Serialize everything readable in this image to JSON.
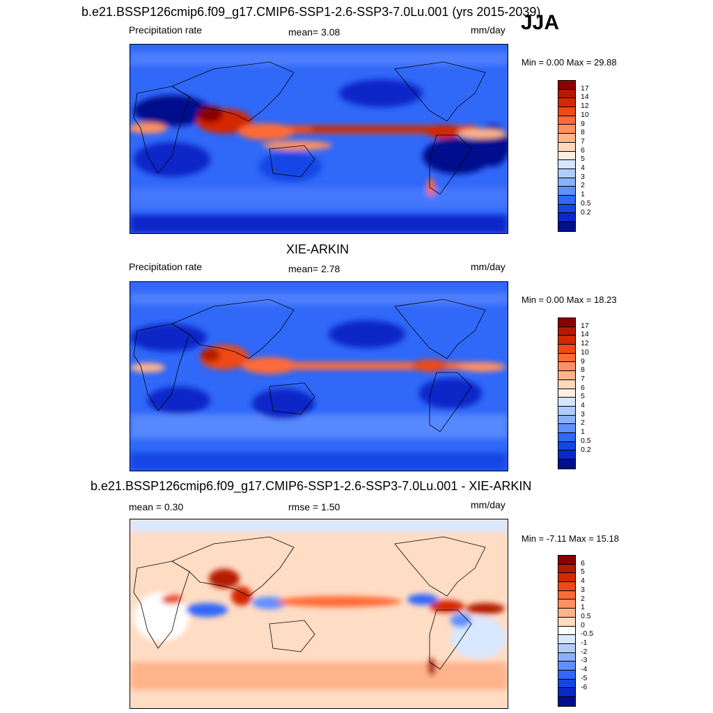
{
  "season": "JJA",
  "panels": [
    {
      "title": "b.e21.BSSP126cmip6.f09_g17.CMIP6-SSP1-2.6-SSP3-7.0Lu.001 (yrs 2015-2039)",
      "left_label": "Precipitation rate",
      "center_label": "mean=   3.08",
      "units": "mm/day",
      "minmax": "Min =   0.00 Max =  29.88",
      "colorbar_labels": [
        "17",
        "14",
        "12",
        "10",
        "9",
        "8",
        "7",
        "6",
        "5",
        "4",
        "3",
        "2",
        "1",
        "0.5",
        "0.2"
      ]
    },
    {
      "title": "XIE-ARKIN",
      "left_label": "Precipitation rate",
      "center_label": "mean=   2.78",
      "units": "mm/day",
      "minmax": "Min =   0.00 Max =  18.23",
      "colorbar_labels": [
        "17",
        "14",
        "12",
        "10",
        "9",
        "8",
        "7",
        "6",
        "5",
        "4",
        "3",
        "2",
        "1",
        "0.5",
        "0.2"
      ]
    },
    {
      "title": "b.e21.BSSP126cmip6.f09_g17.CMIP6-SSP1-2.6-SSP3-7.0Lu.001 - XIE-ARKIN",
      "left_label": "mean =   0.30",
      "center_label": "rmse =   1.50",
      "units": "mm/day",
      "minmax": "Min =  -7.11 Max =  15.18",
      "colorbar_labels": [
        "6",
        "5",
        "4",
        "3",
        "2",
        "1",
        "0.5",
        "0",
        "-0.5",
        "-1",
        "-2",
        "-3",
        "-4",
        "-5",
        "-6"
      ]
    }
  ],
  "colors": {
    "precip_scale": [
      "#8b0000",
      "#b51a00",
      "#d42800",
      "#ee4a18",
      "#ff6a38",
      "#ff9062",
      "#ffb48c",
      "#ffd8bc",
      "#fdf0e2",
      "#d4e6ff",
      "#b0ccff",
      "#8cb0ff",
      "#6090ff",
      "#3068f8",
      "#1446e6",
      "#0a28c8",
      "#00108c"
    ],
    "diff_scale": [
      "#8b0000",
      "#b51a00",
      "#d42800",
      "#ee4a18",
      "#ff6a38",
      "#ff9062",
      "#ffb48c",
      "#ffdcc4",
      "#ffffff",
      "#d8e8ff",
      "#b4ccff",
      "#8cb0ff",
      "#6090ff",
      "#3068f8",
      "#1446e6",
      "#0a28c8",
      "#00108c"
    ]
  }
}
